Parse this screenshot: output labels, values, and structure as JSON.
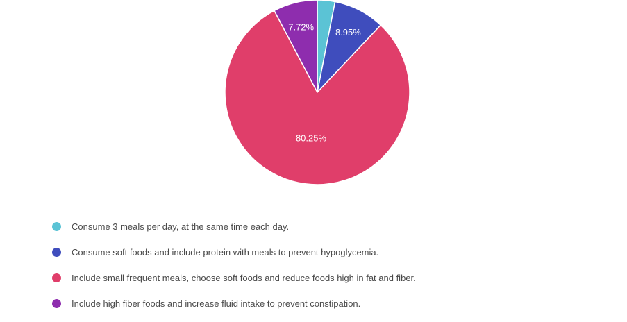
{
  "chart_data": {
    "type": "pie",
    "title": "",
    "legend_position": "bottom-left",
    "slices": [
      {
        "label": "Consume 3 meals per day, at the same time each day.",
        "value": 3.08,
        "display": "",
        "color": "#5BC3D5"
      },
      {
        "label": "Consume soft foods and include protein with meals to prevent hypoglycemia.",
        "value": 8.95,
        "display": "8.95%",
        "color": "#3F4DBD"
      },
      {
        "label": "Include small frequent meals, choose soft foods and reduce foods high in fat and fiber.",
        "value": 80.25,
        "display": "80.25%",
        "color": "#E03E6A"
      },
      {
        "label": "Include high fiber foods and increase fluid intake to prevent constipation.",
        "value": 7.72,
        "display": "7.72%",
        "color": "#8E2DAE"
      }
    ]
  }
}
